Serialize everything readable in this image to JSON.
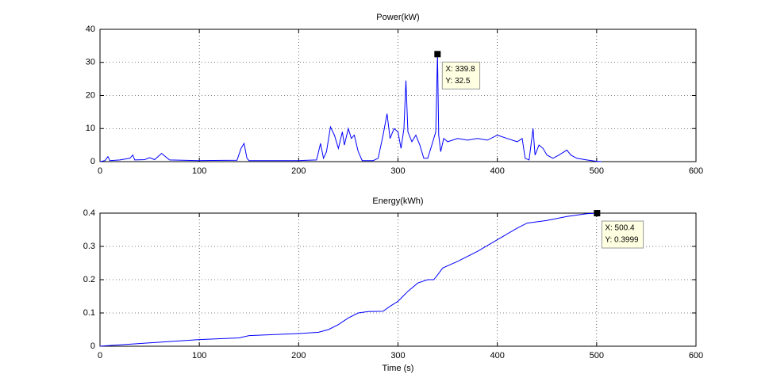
{
  "chart_data": [
    {
      "type": "line",
      "title": "Power(kW)",
      "color": "#0000ff",
      "grid": true,
      "xlim": [
        0,
        600
      ],
      "xticks": [
        0,
        100,
        200,
        300,
        400,
        500,
        600
      ],
      "ylim": [
        0,
        40
      ],
      "yticks": [
        0,
        10,
        20,
        30,
        40
      ],
      "x": [
        0,
        5,
        8,
        10,
        20,
        30,
        33,
        35,
        45,
        50,
        55,
        62,
        66,
        70,
        100,
        138,
        142,
        145,
        148,
        150,
        200,
        218,
        222,
        225,
        228,
        232,
        236,
        240,
        244,
        246,
        250,
        253,
        256,
        260,
        264,
        275,
        280,
        285,
        289,
        292,
        296,
        300,
        303,
        306,
        308,
        310,
        314,
        318,
        322,
        326,
        330,
        334,
        338,
        339.8,
        341,
        343,
        346,
        350,
        360,
        370,
        380,
        390,
        400,
        410,
        420,
        425,
        428,
        432,
        436,
        438,
        442,
        446,
        450,
        456,
        462,
        470,
        474,
        480,
        490,
        500,
        505
      ],
      "values": [
        0,
        0.3,
        1.5,
        0.3,
        0.5,
        1,
        2,
        0.5,
        0.6,
        1.2,
        0.6,
        2.5,
        1.5,
        0.5,
        0.3,
        0.4,
        4,
        5.5,
        1,
        0.3,
        0.3,
        0.5,
        5.5,
        1,
        3,
        10.5,
        8,
        4,
        9,
        5,
        10,
        7,
        8,
        3,
        0.3,
        0.3,
        1,
        8,
        14.5,
        7,
        10,
        9,
        4,
        10,
        24.5,
        9,
        6,
        8,
        5,
        1,
        1,
        5,
        9,
        32.5,
        8,
        3,
        7,
        6,
        7,
        6.5,
        7,
        6.5,
        8,
        7,
        6,
        7,
        1,
        0.5,
        10,
        2,
        5,
        4,
        2,
        1,
        2,
        3.5,
        2,
        1,
        0.5,
        0.1,
        0
      ],
      "annotations": [
        {
          "x": 339.8,
          "y": 32.5,
          "label_x": "X: 339.8",
          "label_y": "Y: 32.5"
        }
      ]
    },
    {
      "type": "line",
      "title": "Energy(kWh)",
      "xlabel": "Time (s)",
      "color": "#0000ff",
      "grid": true,
      "xlim": [
        0,
        600
      ],
      "xticks": [
        0,
        100,
        200,
        300,
        400,
        500,
        600
      ],
      "ylim": [
        0,
        0.4
      ],
      "yticks": [
        0,
        0.1,
        0.2,
        0.3,
        0.4
      ],
      "x": [
        0,
        50,
        100,
        140,
        150,
        200,
        220,
        230,
        240,
        250,
        260,
        270,
        285,
        292,
        300,
        310,
        320,
        330,
        336,
        340,
        345,
        360,
        380,
        400,
        420,
        430,
        450,
        470,
        490,
        500.4
      ],
      "values": [
        0,
        0.01,
        0.02,
        0.025,
        0.032,
        0.038,
        0.042,
        0.05,
        0.065,
        0.085,
        0.1,
        0.104,
        0.105,
        0.12,
        0.135,
        0.165,
        0.19,
        0.2,
        0.2,
        0.215,
        0.235,
        0.255,
        0.285,
        0.32,
        0.355,
        0.37,
        0.378,
        0.39,
        0.398,
        0.3999
      ],
      "annotations": [
        {
          "x": 500.4,
          "y": 0.3999,
          "label_x": "X: 500.4",
          "label_y": "Y: 0.3999"
        }
      ]
    }
  ]
}
